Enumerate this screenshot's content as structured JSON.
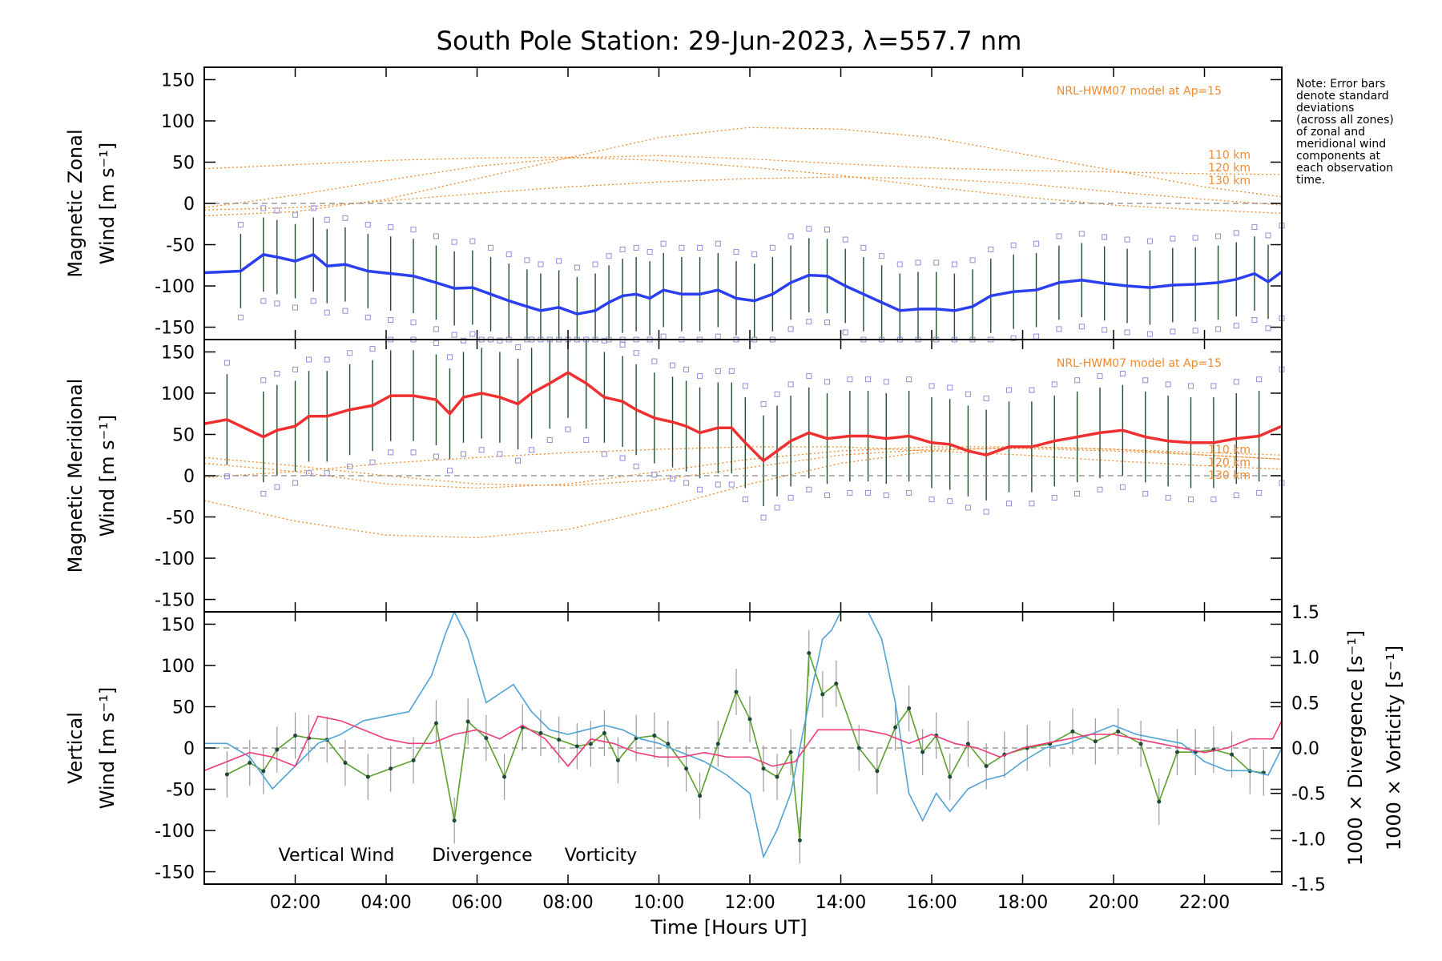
{
  "chart_data": [
    {
      "type": "line",
      "title": "South Pole Station: 29-Jun-2023, λ=557.7 nm",
      "ylabel": [
        "Magnetic Zonal",
        "Wind [m s⁻¹]"
      ],
      "ylim": [
        -165,
        165
      ],
      "yticks": [
        150,
        100,
        50,
        0,
        -50,
        -100,
        -150
      ],
      "model_label": "NRL-HWM07 model at Ap=15",
      "model_alt_labels": [
        "110 km",
        "120 km",
        "130 km"
      ],
      "mean_wind": {
        "color": "#2a3ff0",
        "x": [
          0.0,
          0.8,
          1.3,
          1.6,
          2.0,
          2.4,
          2.7,
          3.1,
          3.6,
          4.1,
          4.6,
          5.1,
          5.5,
          5.9,
          6.3,
          6.7,
          7.1,
          7.4,
          7.8,
          8.2,
          8.6,
          8.9,
          9.2,
          9.5,
          9.8,
          10.1,
          10.5,
          10.9,
          11.3,
          11.7,
          12.1,
          12.5,
          12.9,
          13.3,
          13.7,
          14.1,
          14.5,
          14.9,
          15.3,
          15.7,
          16.1,
          16.5,
          16.9,
          17.3,
          17.8,
          18.3,
          18.8,
          19.3,
          19.8,
          20.3,
          20.8,
          21.3,
          21.8,
          22.3,
          22.7,
          23.1,
          23.4,
          23.7
        ],
        "values": [
          -84,
          -82,
          -62,
          -65,
          -70,
          -62,
          -76,
          -74,
          -82,
          -85,
          -88,
          -96,
          -103,
          -102,
          -110,
          -118,
          -125,
          -130,
          -126,
          -134,
          -130,
          -120,
          -112,
          -110,
          -115,
          -105,
          -110,
          -110,
          -105,
          -115,
          -118,
          -110,
          -96,
          -87,
          -88,
          -100,
          -110,
          -120,
          -130,
          -128,
          -128,
          -130,
          -125,
          -112,
          -107,
          -105,
          -96,
          -93,
          -97,
          -100,
          -102,
          -99,
          -98,
          -96,
          -92,
          -85,
          -95,
          -83
        ]
      },
      "model_curves": [
        {
          "name": "model-a",
          "x": [
            0,
            2,
            4,
            6,
            8,
            10,
            12,
            14,
            16,
            18,
            20,
            22,
            23.7
          ],
          "values": [
            -15,
            -10,
            5,
            30,
            55,
            80,
            92,
            90,
            80,
            60,
            40,
            20,
            8
          ]
        },
        {
          "name": "model-b",
          "x": [
            0,
            2,
            4,
            6,
            8,
            10,
            12,
            14,
            16,
            18,
            20,
            22,
            23.7
          ],
          "values": [
            -5,
            10,
            28,
            45,
            55,
            58,
            54,
            48,
            43,
            40,
            38,
            36,
            35
          ]
        },
        {
          "name": "model-c",
          "x": [
            0,
            2,
            4,
            6,
            8,
            10,
            12,
            14,
            16,
            18,
            20,
            22,
            23.7
          ],
          "values": [
            42,
            47,
            52,
            55,
            56,
            52,
            44,
            34,
            20,
            8,
            -2,
            -8,
            -12
          ]
        },
        {
          "name": "model-d",
          "x": [
            0,
            2,
            4,
            6,
            8,
            10,
            12,
            14,
            16,
            18,
            20,
            22,
            23.7
          ],
          "values": [
            -8,
            -5,
            3,
            12,
            20,
            26,
            30,
            32,
            30,
            24,
            14,
            5,
            -2
          ]
        }
      ],
      "error_bar_sd": 45
    },
    {
      "type": "line",
      "ylabel": [
        "Magnetic Meridional",
        "Wind [m s⁻¹]"
      ],
      "ylim": [
        -165,
        165
      ],
      "yticks": [
        150,
        100,
        50,
        0,
        -50,
        -100,
        -150
      ],
      "model_label": "NRL-HWM07 model at Ap=15",
      "model_alt_labels": [
        "110 km",
        "120 km",
        "130 km"
      ],
      "mean_wind": {
        "color": "#f03030",
        "x": [
          0.0,
          0.5,
          1.3,
          1.6,
          2.0,
          2.3,
          2.7,
          3.2,
          3.7,
          4.1,
          4.6,
          5.1,
          5.4,
          5.7,
          6.1,
          6.5,
          6.9,
          7.2,
          7.6,
          8.0,
          8.4,
          8.8,
          9.2,
          9.5,
          9.9,
          10.3,
          10.6,
          10.9,
          11.3,
          11.6,
          11.9,
          12.3,
          12.6,
          12.9,
          13.3,
          13.7,
          14.2,
          14.6,
          15.0,
          15.5,
          16.0,
          16.4,
          16.8,
          17.2,
          17.7,
          18.2,
          18.7,
          19.2,
          19.7,
          20.2,
          20.7,
          21.2,
          21.7,
          22.2,
          22.7,
          23.2,
          23.7
        ],
        "values": [
          63,
          68,
          47,
          55,
          60,
          72,
          72,
          80,
          85,
          97,
          97,
          92,
          75,
          95,
          100,
          95,
          87,
          100,
          112,
          125,
          112,
          95,
          90,
          80,
          70,
          65,
          60,
          52,
          58,
          58,
          40,
          18,
          30,
          42,
          52,
          45,
          48,
          48,
          45,
          48,
          40,
          38,
          30,
          25,
          35,
          35,
          42,
          47,
          52,
          55,
          47,
          42,
          40,
          40,
          45,
          48,
          60
        ]
      },
      "model_curves": [
        {
          "name": "model-a",
          "x": [
            0,
            2,
            4,
            6,
            8,
            10,
            12,
            14,
            16,
            18,
            20,
            22,
            23.7
          ],
          "values": [
            -30,
            -55,
            -72,
            -75,
            -65,
            -40,
            -10,
            15,
            30,
            35,
            32,
            25,
            20
          ]
        },
        {
          "name": "model-b",
          "x": [
            0,
            2,
            4,
            6,
            8,
            10,
            12,
            14,
            16,
            18,
            20,
            22,
            23.7
          ],
          "values": [
            22,
            12,
            0,
            -10,
            -12,
            -5,
            10,
            25,
            32,
            33,
            30,
            25,
            20
          ]
        },
        {
          "name": "model-c",
          "x": [
            0,
            2,
            4,
            6,
            8,
            10,
            12,
            14,
            16,
            18,
            20,
            22,
            23.7
          ],
          "values": [
            15,
            5,
            -10,
            -15,
            -10,
            5,
            20,
            30,
            35,
            35,
            32,
            28,
            25
          ]
        },
        {
          "name": "model-d",
          "x": [
            0,
            2,
            4,
            6,
            8,
            10,
            12,
            14,
            16,
            18,
            20,
            22,
            23.7
          ],
          "values": [
            -2,
            5,
            15,
            22,
            28,
            32,
            35,
            35,
            30,
            25,
            18,
            12,
            8
          ]
        }
      ],
      "error_bar_sd": 55
    },
    {
      "type": "line",
      "xlabel": "Time [Hours UT]",
      "xlim": [
        0,
        23.7
      ],
      "xticks": [
        "02:00",
        "04:00",
        "06:00",
        "08:00",
        "10:00",
        "12:00",
        "14:00",
        "16:00",
        "18:00",
        "20:00",
        "22:00"
      ],
      "xtick_hours": [
        2,
        4,
        6,
        8,
        10,
        12,
        14,
        16,
        18,
        20,
        22
      ],
      "ylabel_left": [
        "Vertical",
        "Wind [m s⁻¹]"
      ],
      "ylabel_right_1": "1000 × Divergence [s⁻¹]",
      "ylabel_right_2": "1000 × Vorticity [s⁻¹]",
      "ylim": [
        -165,
        165
      ],
      "yticks": [
        150,
        100,
        50,
        0,
        -50,
        -100,
        -150
      ],
      "ylim_right": [
        -1.5,
        1.5
      ],
      "yticks_right": [
        "1.5",
        "1.0",
        "0.5",
        "0.0",
        "-0.5",
        "-1.0",
        "-1.5"
      ],
      "legend": [
        "Vertical Wind",
        "Divergence",
        "Vorticity"
      ],
      "series": [
        {
          "name": "Vertical Wind",
          "color": "#5aa02c",
          "axis": "left",
          "x": [
            0.5,
            1.0,
            1.3,
            1.6,
            2.0,
            2.3,
            2.7,
            3.1,
            3.6,
            4.1,
            4.6,
            5.1,
            5.5,
            5.8,
            6.2,
            6.6,
            7.0,
            7.4,
            7.8,
            8.2,
            8.5,
            8.8,
            9.1,
            9.5,
            9.9,
            10.2,
            10.6,
            10.9,
            11.3,
            11.7,
            12.0,
            12.3,
            12.6,
            12.9,
            13.1,
            13.3,
            13.6,
            13.9,
            14.4,
            14.8,
            15.2,
            15.5,
            15.8,
            16.1,
            16.4,
            16.8,
            17.2,
            17.6,
            18.1,
            18.6,
            19.1,
            19.6,
            20.1,
            20.6,
            21.0,
            21.4,
            21.8,
            22.2,
            22.6,
            23.0,
            23.3
          ],
          "values": [
            -32,
            -18,
            -28,
            -2,
            15,
            12,
            10,
            -18,
            -35,
            -25,
            -15,
            30,
            -88,
            32,
            12,
            -35,
            25,
            18,
            10,
            2,
            5,
            18,
            -15,
            12,
            15,
            5,
            -25,
            -58,
            5,
            68,
            35,
            -25,
            -35,
            -5,
            -112,
            115,
            65,
            78,
            0,
            -28,
            25,
            48,
            -5,
            15,
            -35,
            5,
            -22,
            -8,
            0,
            5,
            20,
            8,
            20,
            5,
            -65,
            -5,
            -5,
            -2,
            -8,
            -28,
            -30
          ]
        },
        {
          "name": "Divergence",
          "color": "#4fa3d6",
          "axis": "right",
          "x": [
            0.0,
            0.5,
            1.0,
            1.5,
            2.0,
            2.5,
            3.0,
            3.5,
            4.0,
            4.5,
            5.0,
            5.3,
            5.5,
            5.8,
            6.2,
            6.5,
            6.8,
            7.2,
            7.6,
            8.0,
            8.4,
            8.8,
            9.2,
            9.6,
            10.0,
            10.5,
            11.0,
            11.5,
            12.0,
            12.3,
            12.6,
            12.9,
            13.3,
            13.6,
            13.8,
            14.0,
            14.3,
            14.6,
            14.9,
            15.2,
            15.5,
            15.8,
            16.1,
            16.4,
            16.8,
            17.2,
            17.6,
            18.0,
            18.5,
            19.0,
            19.5,
            20.0,
            20.5,
            21.0,
            21.5,
            22.0,
            22.5,
            23.0,
            23.4,
            23.7
          ],
          "values": [
            0.05,
            0.05,
            -0.1,
            -0.45,
            -0.2,
            0.05,
            0.15,
            0.3,
            0.35,
            0.4,
            0.8,
            1.25,
            1.6,
            1.2,
            0.5,
            0.6,
            0.7,
            0.4,
            0.2,
            0.15,
            0.2,
            0.25,
            0.2,
            0.1,
            0.05,
            -0.05,
            -0.15,
            -0.3,
            -0.5,
            -1.2,
            -0.9,
            -0.5,
            0.5,
            1.2,
            1.3,
            1.6,
            1.6,
            1.6,
            1.2,
            0.5,
            -0.5,
            -0.8,
            -0.5,
            -0.7,
            -0.45,
            -0.35,
            -0.3,
            -0.15,
            0.0,
            0.05,
            0.15,
            0.25,
            0.15,
            0.1,
            0.05,
            -0.15,
            -0.25,
            -0.25,
            -0.3,
            0.0
          ]
        },
        {
          "name": "Vorticity",
          "color": "#f03a7a",
          "axis": "right",
          "x": [
            0.0,
            0.5,
            1.0,
            1.5,
            2.0,
            2.5,
            3.0,
            3.5,
            4.0,
            4.5,
            5.0,
            5.5,
            6.0,
            6.5,
            7.0,
            7.5,
            8.0,
            8.5,
            9.0,
            9.5,
            10.0,
            10.5,
            11.0,
            11.5,
            12.0,
            12.5,
            13.0,
            13.5,
            14.0,
            14.5,
            15.0,
            15.5,
            16.0,
            16.5,
            17.0,
            17.5,
            18.0,
            18.5,
            19.0,
            19.5,
            20.0,
            20.5,
            21.0,
            21.5,
            22.0,
            22.5,
            23.0,
            23.5,
            23.7
          ],
          "values": [
            -0.25,
            -0.15,
            -0.05,
            -0.1,
            -0.2,
            0.35,
            0.3,
            0.2,
            0.1,
            0.05,
            0.05,
            0.15,
            0.2,
            0.1,
            0.25,
            0.1,
            -0.2,
            0.1,
            0.05,
            -0.05,
            -0.1,
            -0.1,
            -0.05,
            -0.1,
            -0.1,
            -0.2,
            -0.15,
            0.2,
            0.2,
            0.2,
            0.15,
            0.05,
            0.15,
            0.05,
            0.0,
            -0.1,
            0.0,
            0.05,
            0.1,
            0.15,
            0.15,
            0.1,
            0.05,
            0.0,
            -0.05,
            0.0,
            0.1,
            0.1,
            0.3
          ]
        }
      ]
    }
  ],
  "note": [
    "Note: Error bars",
    "denote standard",
    "deviations",
    "(across all zones)",
    "of zonal and",
    "meridional wind",
    "components at",
    "each observation",
    "time."
  ]
}
